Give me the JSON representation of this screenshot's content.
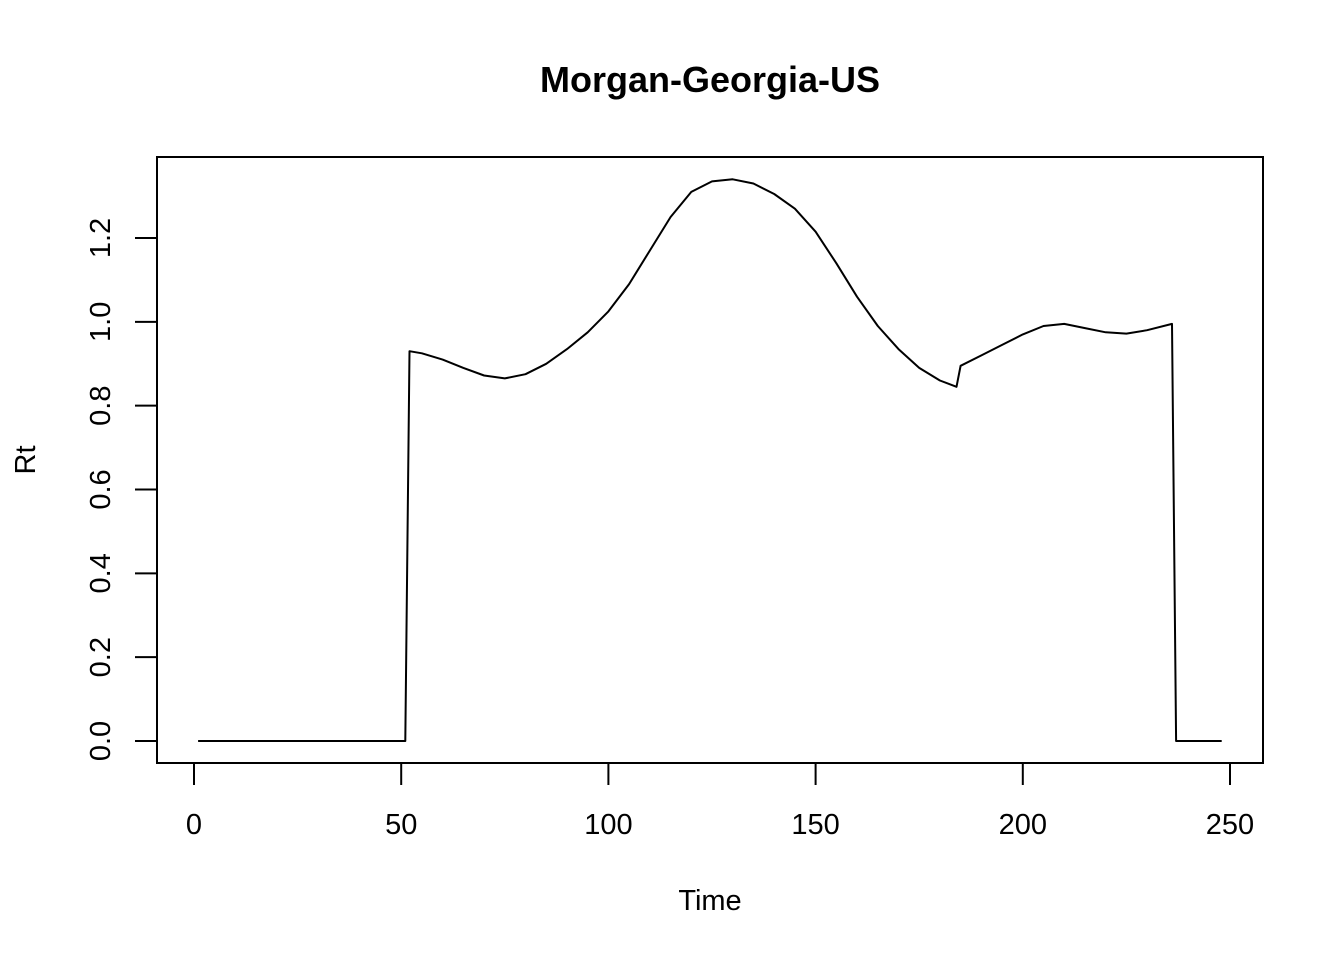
{
  "chart_data": {
    "type": "line",
    "title": "Morgan-Georgia-US",
    "xlabel": "Time",
    "ylabel": "Rt",
    "xlim": [
      0,
      250
    ],
    "ylim": [
      0,
      1.35
    ],
    "x_ticks": [
      0,
      50,
      100,
      150,
      200,
      250
    ],
    "y_ticks": [
      0.0,
      0.2,
      0.4,
      0.6,
      0.8,
      1.0,
      1.2
    ],
    "x_tick_labels": [
      "0",
      "50",
      "100",
      "150",
      "200",
      "250"
    ],
    "y_tick_labels": [
      "0.0",
      "0.2",
      "0.4",
      "0.6",
      "0.8",
      "1.0",
      "1.2"
    ],
    "grid": false,
    "line_color": "#000000",
    "series": [
      {
        "x": [
          1,
          51,
          52,
          55,
          60,
          65,
          70,
          75,
          80,
          85,
          90,
          95,
          100,
          105,
          110,
          115,
          120,
          125,
          130,
          135,
          140,
          145,
          150,
          155,
          160,
          165,
          170,
          175,
          180,
          184,
          185,
          190,
          195,
          200,
          205,
          210,
          215,
          220,
          225,
          230,
          236,
          237,
          248
        ],
        "y": [
          0,
          0,
          0.93,
          0.925,
          0.91,
          0.89,
          0.872,
          0.865,
          0.875,
          0.9,
          0.935,
          0.975,
          1.025,
          1.09,
          1.17,
          1.25,
          1.31,
          1.335,
          1.34,
          1.33,
          1.305,
          1.27,
          1.215,
          1.14,
          1.06,
          0.99,
          0.935,
          0.89,
          0.86,
          0.845,
          0.895,
          0.92,
          0.945,
          0.97,
          0.99,
          0.995,
          0.985,
          0.975,
          0.972,
          0.98,
          0.995,
          0,
          0
        ]
      }
    ]
  }
}
